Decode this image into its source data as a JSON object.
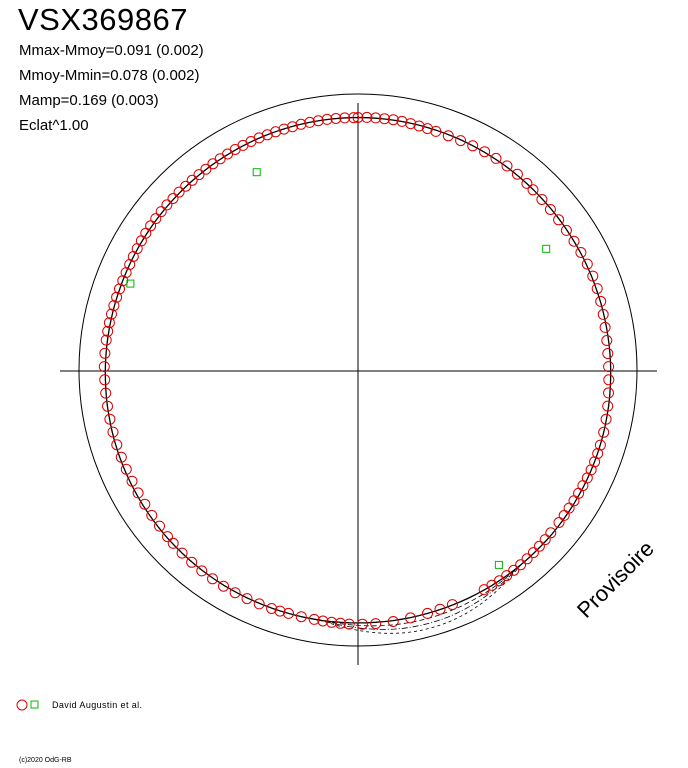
{
  "title": "VSX369867",
  "stats": {
    "line1": "Mmax-Mmoy=0.091 (0.002)",
    "line2": "Mmoy-Mmin=0.078 (0.002)",
    "line3": "Mamp=0.169 (0.003)",
    "line4": "Eclat^1.00"
  },
  "watermark": "Provisoire",
  "legend": {
    "observer": "David Augustin et al."
  },
  "copyright": "(c)2020 OdG-RB",
  "colors": {
    "observations": "#dd0000",
    "reference_marks": "#00bb00",
    "lines": "#000000"
  },
  "chart_data": {
    "type": "scatter",
    "coordinate_system": "polar",
    "axes": "cross-hair through center",
    "grid": false,
    "legend_position": "bottom-left",
    "series": [
      {
        "name": "David Augustin et al.",
        "marker": "circle",
        "points_deg_r": [
          [
            0,
            0.994
          ],
          [
            2,
            0.995
          ],
          [
            4,
            0.995
          ],
          [
            6,
            0.995
          ],
          [
            8,
            0.995
          ],
          [
            10,
            0.994
          ],
          [
            12,
            0.992
          ],
          [
            14,
            0.99
          ],
          [
            16,
            0.989
          ],
          [
            18,
            0.988
          ],
          [
            21,
            0.988
          ],
          [
            24,
            0.989
          ],
          [
            27,
            0.991
          ],
          [
            30,
            0.993
          ],
          [
            33,
            0.994
          ],
          [
            36,
            0.994
          ],
          [
            39,
            0.993
          ],
          [
            42,
            0.99
          ],
          [
            44,
            0.988
          ],
          [
            47,
            0.986
          ],
          [
            50,
            0.985
          ],
          [
            53,
            0.985
          ],
          [
            56,
            0.986
          ],
          [
            59,
            0.988
          ],
          [
            62,
            0.99
          ],
          [
            65,
            0.992
          ],
          [
            68,
            0.993
          ],
          [
            71,
            0.992
          ],
          [
            74,
            0.99
          ],
          [
            77,
            0.987
          ],
          [
            80,
            0.984
          ],
          [
            83,
            0.983
          ],
          [
            86,
            0.982
          ],
          [
            89,
            0.983
          ],
          [
            92,
            0.984
          ],
          [
            95,
            0.986
          ],
          [
            98,
            0.989
          ],
          [
            101,
            0.991
          ],
          [
            104,
            0.993
          ],
          [
            107,
            0.994
          ],
          [
            109,
            0.994
          ],
          [
            111,
            0.994
          ],
          [
            113,
            0.993
          ],
          [
            115,
            0.992
          ],
          [
            117,
            0.99
          ],
          [
            119,
            0.989
          ],
          [
            121,
            0.988
          ],
          [
            123,
            0.987
          ],
          [
            125,
            0.987
          ],
          [
            127,
            0.987
          ],
          [
            130,
            0.987
          ],
          [
            132,
            0.988
          ],
          [
            134,
            0.989
          ],
          [
            136,
            0.99
          ],
          [
            138,
            0.991
          ],
          [
            140,
            0.992
          ],
          [
            142,
            0.992
          ],
          [
            144,
            0.992
          ],
          [
            146,
            0.992
          ],
          [
            148,
            0.991
          ],
          [
            150,
            0.99
          ],
          [
            158,
            0.988
          ],
          [
            161,
            0.988
          ],
          [
            164,
            0.989
          ],
          [
            168,
            0.99
          ],
          [
            172,
            0.992
          ],
          [
            176,
            0.993
          ],
          [
            179,
            0.993
          ],
          [
            182,
            0.993
          ],
          [
            184,
            0.992
          ],
          [
            186,
            0.991
          ],
          [
            188,
            0.99
          ],
          [
            190,
            0.989
          ],
          [
            193,
            0.989
          ],
          [
            196,
            0.989
          ],
          [
            198,
            0.99
          ],
          [
            200,
            0.991
          ],
          [
            203,
            0.992
          ],
          [
            206,
            0.993
          ],
          [
            209,
            0.994
          ],
          [
            212,
            0.995
          ],
          [
            215,
            0.995
          ],
          [
            218,
            0.995
          ],
          [
            221,
            0.994
          ],
          [
            224,
            0.993
          ],
          [
            227,
            0.991
          ],
          [
            229,
            0.99
          ],
          [
            232,
            0.988
          ],
          [
            235,
            0.987
          ],
          [
            238,
            0.986
          ],
          [
            241,
            0.986
          ],
          [
            244,
            0.986
          ],
          [
            247,
            0.987
          ],
          [
            250,
            0.988
          ],
          [
            253,
            0.989
          ],
          [
            256,
            0.99
          ],
          [
            259,
            0.991
          ],
          [
            262,
            0.992
          ],
          [
            265,
            0.993
          ],
          [
            268,
            0.994
          ],
          [
            271,
            0.995
          ],
          [
            274,
            0.995
          ],
          [
            277,
            0.995
          ],
          [
            279,
            0.994
          ],
          [
            281,
            0.993
          ],
          [
            283,
            0.992
          ],
          [
            285,
            0.991
          ],
          [
            287,
            0.99
          ],
          [
            289,
            0.989
          ],
          [
            291,
            0.988
          ],
          [
            293,
            0.988
          ],
          [
            295,
            0.988
          ],
          [
            297,
            0.989
          ],
          [
            299,
            0.99
          ],
          [
            301,
            0.991
          ],
          [
            303,
            0.992
          ],
          [
            305,
            0.993
          ],
          [
            307,
            0.993
          ],
          [
            309,
            0.993
          ],
          [
            311,
            0.993
          ],
          [
            313,
            0.992
          ],
          [
            315,
            0.992
          ],
          [
            317,
            0.991
          ],
          [
            319,
            0.991
          ],
          [
            321,
            0.991
          ],
          [
            323,
            0.991
          ],
          [
            325,
            0.992
          ],
          [
            327,
            0.992
          ],
          [
            329,
            0.993
          ],
          [
            331,
            0.993
          ],
          [
            333,
            0.993
          ],
          [
            335,
            0.993
          ],
          [
            337,
            0.993
          ],
          [
            339,
            0.992
          ],
          [
            341,
            0.992
          ],
          [
            343,
            0.992
          ],
          [
            345,
            0.992
          ],
          [
            347,
            0.993
          ],
          [
            349,
            0.993
          ],
          [
            351,
            0.994
          ],
          [
            353,
            0.994
          ],
          [
            355,
            0.994
          ],
          [
            357,
            0.994
          ],
          [
            359,
            0.994
          ]
        ]
      },
      {
        "name": "",
        "marker": "square",
        "points_deg_r": [
          [
            57,
            0.88
          ],
          [
            144,
            0.94
          ],
          [
            291,
            0.956
          ],
          [
            333,
            0.875
          ]
        ]
      }
    ]
  }
}
